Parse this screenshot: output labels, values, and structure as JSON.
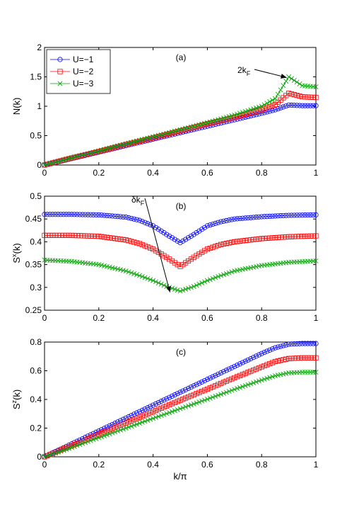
{
  "chart_data": [
    {
      "type": "line",
      "panel_label": "(a)",
      "xlabel": "",
      "ylabel": "N(k)",
      "xlim": [
        0,
        1
      ],
      "ylim": [
        0,
        2
      ],
      "xticks": [
        "0",
        "0.2",
        "0.4",
        "0.6",
        "0.8",
        "1"
      ],
      "yticks": [
        "0",
        "0.5",
        "1",
        "1.5",
        "2"
      ],
      "legend": {
        "placement": "top-left",
        "entries": [
          "U=−1",
          "U=−2",
          "U=−3"
        ]
      },
      "annotation": {
        "text": "2k",
        "subscript": "F",
        "arrow_to": [
          0.9,
          1.5
        ]
      },
      "series": [
        {
          "name": "U=−1",
          "color": "#0000ff",
          "marker": "circle",
          "points": [
            [
              0,
              0
            ],
            [
              0.1,
              0.11
            ],
            [
              0.2,
              0.22
            ],
            [
              0.3,
              0.33
            ],
            [
              0.4,
              0.44
            ],
            [
              0.5,
              0.55
            ],
            [
              0.6,
              0.66
            ],
            [
              0.7,
              0.77
            ],
            [
              0.8,
              0.88
            ],
            [
              0.85,
              0.94
            ],
            [
              0.9,
              1.02
            ],
            [
              0.95,
              1.01
            ],
            [
              1,
              1.01
            ]
          ]
        },
        {
          "name": "U=−2",
          "color": "#ff0000",
          "marker": "square",
          "points": [
            [
              0,
              0
            ],
            [
              0.1,
              0.12
            ],
            [
              0.2,
              0.23
            ],
            [
              0.3,
              0.35
            ],
            [
              0.4,
              0.46
            ],
            [
              0.5,
              0.58
            ],
            [
              0.6,
              0.7
            ],
            [
              0.7,
              0.81
            ],
            [
              0.8,
              0.94
            ],
            [
              0.85,
              1.03
            ],
            [
              0.9,
              1.22
            ],
            [
              0.95,
              1.16
            ],
            [
              1,
              1.15
            ]
          ]
        },
        {
          "name": "U=−3",
          "color": "#00a000",
          "marker": "x",
          "points": [
            [
              0,
              0
            ],
            [
              0.1,
              0.12
            ],
            [
              0.2,
              0.24
            ],
            [
              0.3,
              0.36
            ],
            [
              0.4,
              0.48
            ],
            [
              0.5,
              0.6
            ],
            [
              0.6,
              0.72
            ],
            [
              0.7,
              0.85
            ],
            [
              0.8,
              1.0
            ],
            [
              0.85,
              1.13
            ],
            [
              0.9,
              1.5
            ],
            [
              0.95,
              1.35
            ],
            [
              1,
              1.33
            ]
          ]
        }
      ]
    },
    {
      "type": "line",
      "panel_label": "(b)",
      "xlabel": "",
      "ylabel": "S",
      "ylabel_sup": "x",
      "ylabel_tail": "(k)",
      "xlim": [
        0,
        1
      ],
      "ylim": [
        0.25,
        0.5
      ],
      "xticks": [
        "0",
        "0.2",
        "0.4",
        "0.6",
        "0.8",
        "1"
      ],
      "yticks": [
        "0.25",
        "0.3",
        "0.35",
        "0.4",
        "0.45",
        "0.5"
      ],
      "annotation": {
        "text": "δk",
        "subscript": "F",
        "arrow_to": [
          0.47,
          0.291
        ]
      },
      "series": [
        {
          "name": "U=−1",
          "color": "#0000ff",
          "marker": "circle",
          "points": [
            [
              0,
              0.46
            ],
            [
              0.1,
              0.46
            ],
            [
              0.2,
              0.459
            ],
            [
              0.3,
              0.454
            ],
            [
              0.35,
              0.447
            ],
            [
              0.4,
              0.435
            ],
            [
              0.45,
              0.416
            ],
            [
              0.5,
              0.398
            ],
            [
              0.55,
              0.416
            ],
            [
              0.6,
              0.435
            ],
            [
              0.65,
              0.444
            ],
            [
              0.7,
              0.45
            ],
            [
              0.8,
              0.455
            ],
            [
              0.9,
              0.458
            ],
            [
              1,
              0.459
            ]
          ]
        },
        {
          "name": "U=−2",
          "color": "#ff0000",
          "marker": "square",
          "points": [
            [
              0,
              0.414
            ],
            [
              0.1,
              0.414
            ],
            [
              0.2,
              0.412
            ],
            [
              0.3,
              0.404
            ],
            [
              0.35,
              0.396
            ],
            [
              0.4,
              0.384
            ],
            [
              0.45,
              0.366
            ],
            [
              0.5,
              0.346
            ],
            [
              0.55,
              0.366
            ],
            [
              0.6,
              0.384
            ],
            [
              0.65,
              0.394
            ],
            [
              0.7,
              0.4
            ],
            [
              0.8,
              0.407
            ],
            [
              0.9,
              0.411
            ],
            [
              1,
              0.413
            ]
          ]
        },
        {
          "name": "U=−3",
          "color": "#00a000",
          "marker": "x",
          "points": [
            [
              0,
              0.36
            ],
            [
              0.1,
              0.357
            ],
            [
              0.2,
              0.35
            ],
            [
              0.3,
              0.336
            ],
            [
              0.35,
              0.326
            ],
            [
              0.4,
              0.315
            ],
            [
              0.45,
              0.302
            ],
            [
              0.5,
              0.292
            ],
            [
              0.55,
              0.302
            ],
            [
              0.6,
              0.315
            ],
            [
              0.65,
              0.326
            ],
            [
              0.7,
              0.336
            ],
            [
              0.8,
              0.348
            ],
            [
              0.9,
              0.355
            ],
            [
              1,
              0.358
            ]
          ]
        }
      ]
    },
    {
      "type": "line",
      "panel_label": "(c)",
      "xlabel": "k/π",
      "ylabel": "S",
      "ylabel_sup": "z",
      "ylabel_tail": "(k)",
      "xlim": [
        0,
        1
      ],
      "ylim": [
        0,
        0.8
      ],
      "xticks": [
        "0",
        "0.2",
        "0.4",
        "0.6",
        "0.8",
        "1"
      ],
      "yticks": [
        "0",
        "0.2",
        "0.4",
        "0.6",
        "0.8"
      ],
      "series": [
        {
          "name": "U=−1",
          "color": "#0000ff",
          "marker": "circle",
          "points": [
            [
              0,
              0
            ],
            [
              0.1,
              0.09
            ],
            [
              0.2,
              0.18
            ],
            [
              0.3,
              0.27
            ],
            [
              0.4,
              0.36
            ],
            [
              0.5,
              0.45
            ],
            [
              0.6,
              0.54
            ],
            [
              0.7,
              0.63
            ],
            [
              0.8,
              0.72
            ],
            [
              0.85,
              0.76
            ],
            [
              0.9,
              0.785
            ],
            [
              0.95,
              0.79
            ],
            [
              1,
              0.79
            ]
          ]
        },
        {
          "name": "U=−2",
          "color": "#ff0000",
          "marker": "square",
          "points": [
            [
              0,
              0
            ],
            [
              0.1,
              0.078
            ],
            [
              0.2,
              0.157
            ],
            [
              0.3,
              0.236
            ],
            [
              0.4,
              0.315
            ],
            [
              0.5,
              0.394
            ],
            [
              0.6,
              0.472
            ],
            [
              0.7,
              0.551
            ],
            [
              0.8,
              0.627
            ],
            [
              0.85,
              0.664
            ],
            [
              0.9,
              0.685
            ],
            [
              0.95,
              0.69
            ],
            [
              1,
              0.69
            ]
          ]
        },
        {
          "name": "U=−3",
          "color": "#00a000",
          "marker": "x",
          "points": [
            [
              0,
              0
            ],
            [
              0.1,
              0.065
            ],
            [
              0.2,
              0.133
            ],
            [
              0.3,
              0.2
            ],
            [
              0.4,
              0.268
            ],
            [
              0.5,
              0.335
            ],
            [
              0.6,
              0.402
            ],
            [
              0.7,
              0.47
            ],
            [
              0.8,
              0.535
            ],
            [
              0.85,
              0.565
            ],
            [
              0.9,
              0.585
            ],
            [
              0.95,
              0.59
            ],
            [
              1,
              0.59
            ]
          ]
        }
      ]
    }
  ]
}
